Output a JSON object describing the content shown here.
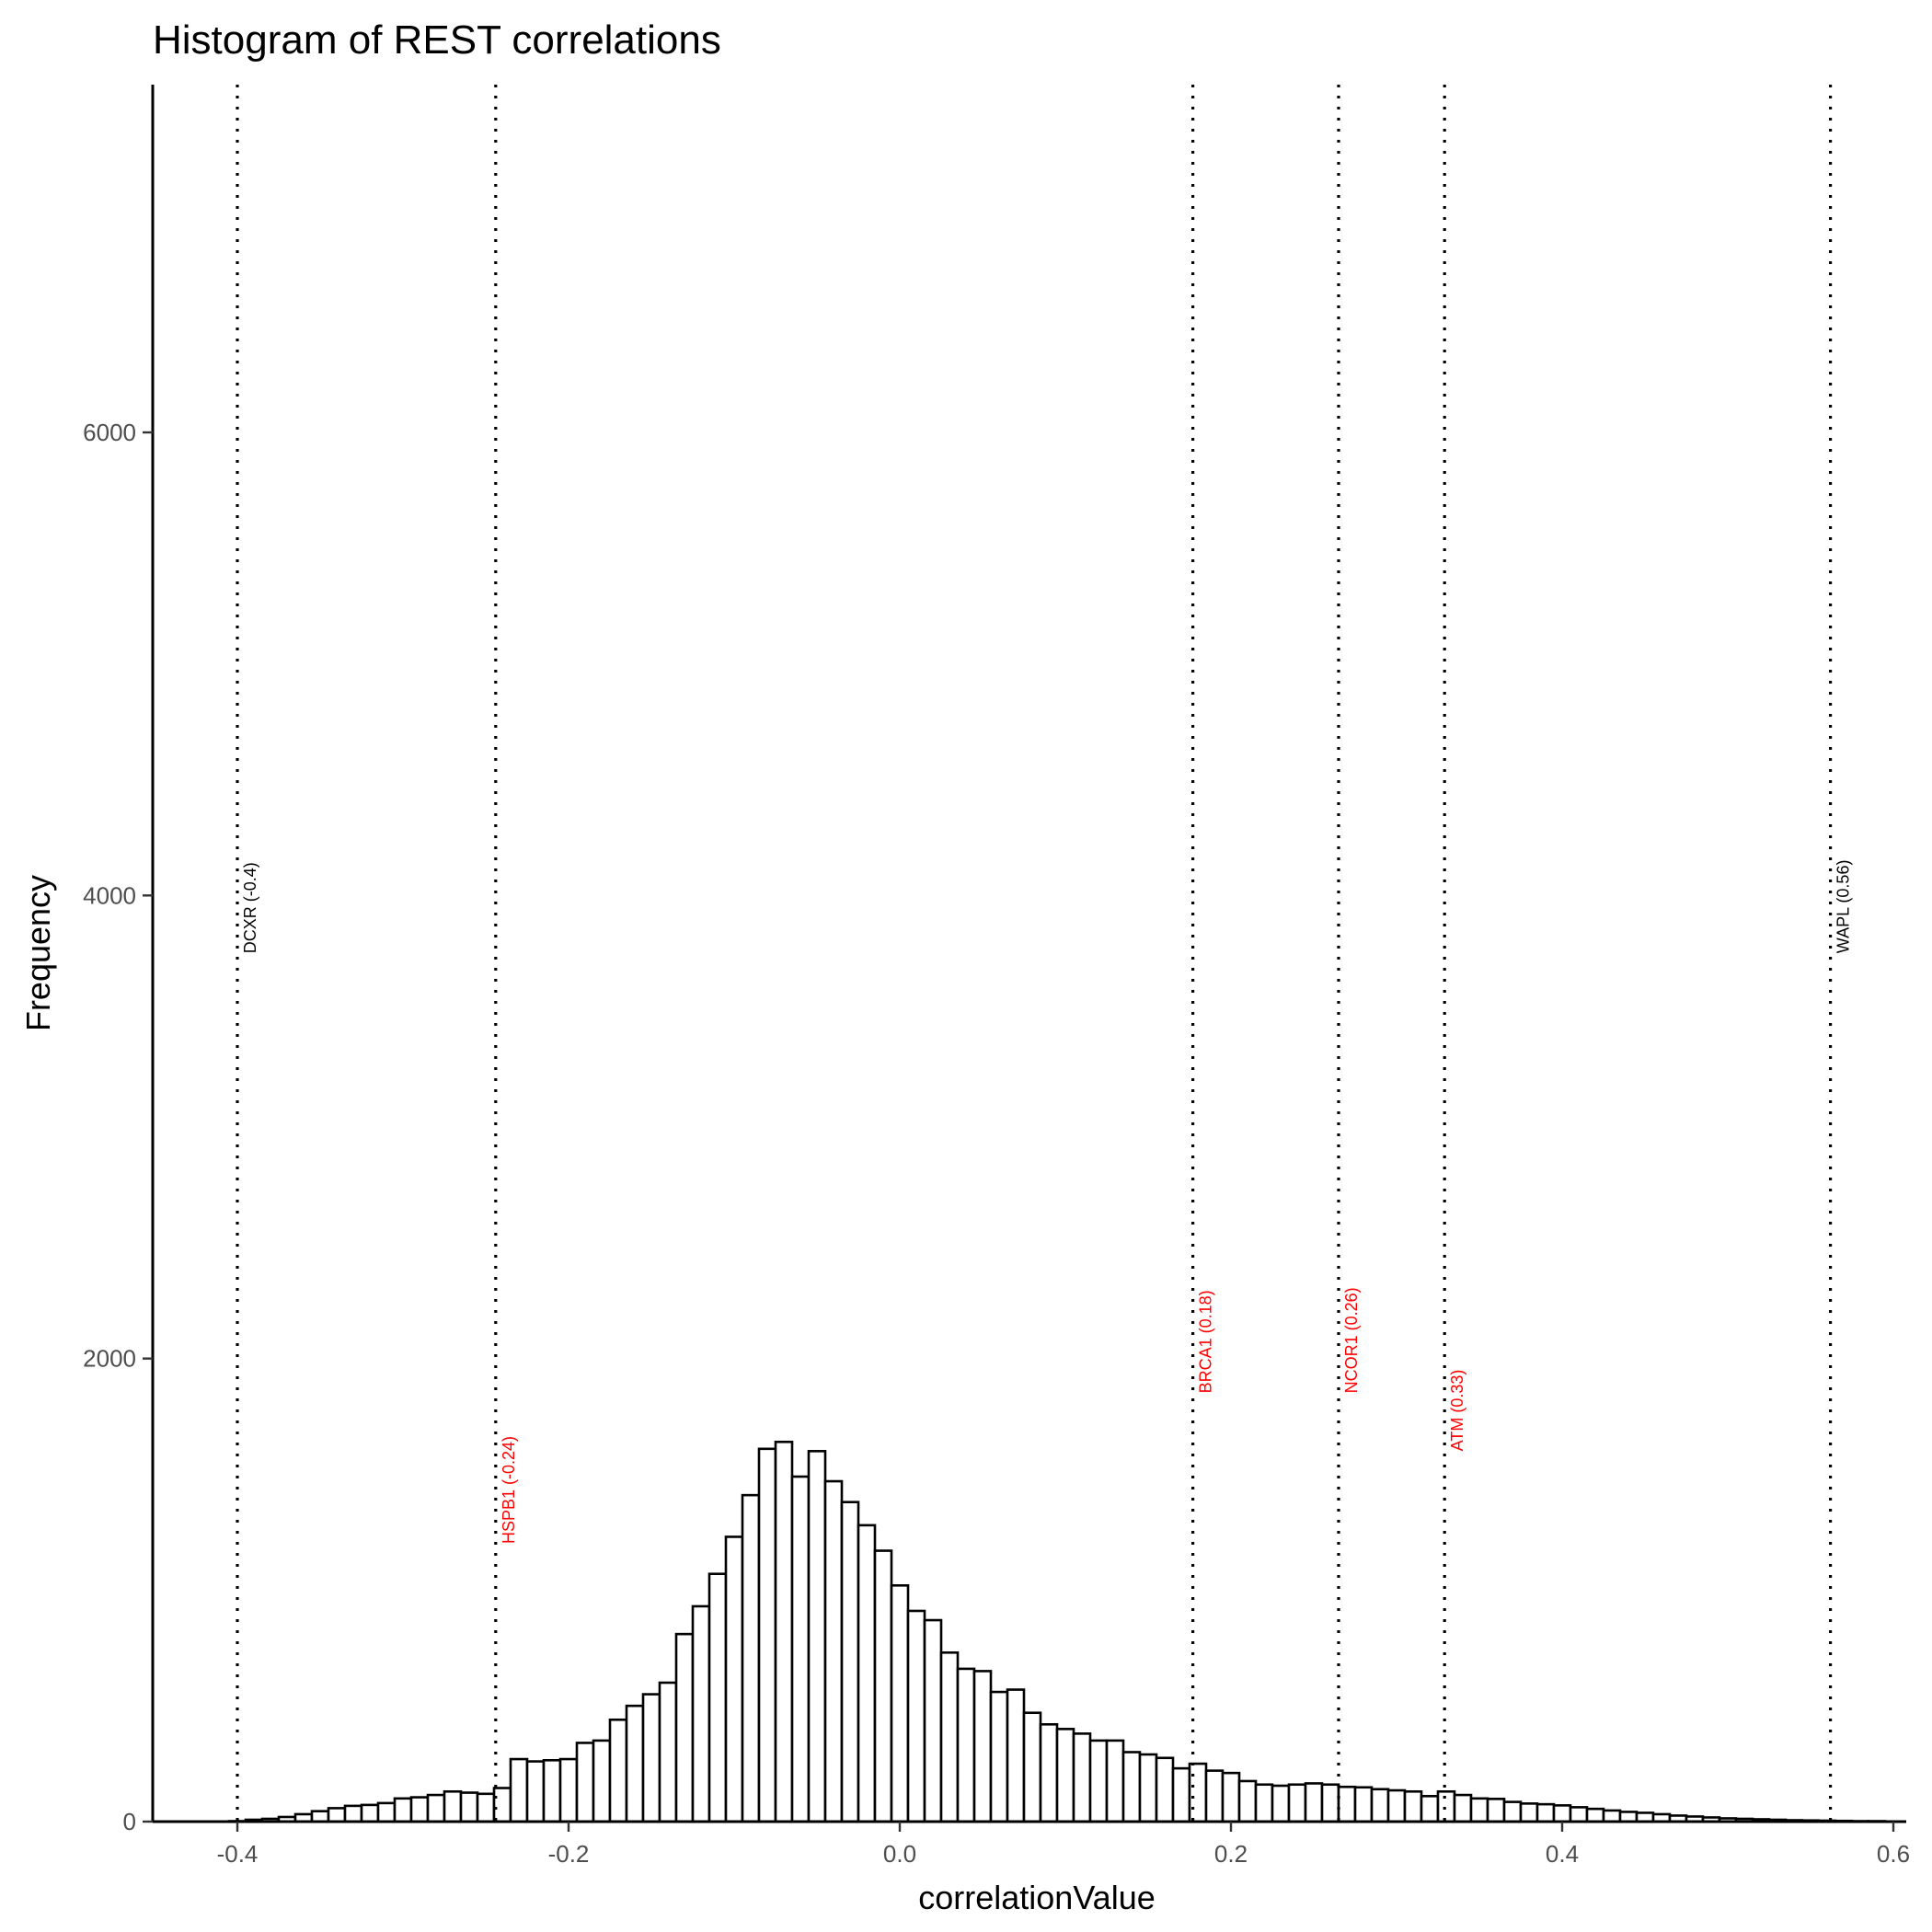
{
  "chart_data": {
    "type": "bar",
    "title": "Histogram of REST correlations",
    "xlabel": "correlationValue",
    "ylabel": "Frequency",
    "xlim": [
      -0.45,
      0.61
    ],
    "ylim": [
      0,
      7500
    ],
    "x_ticks": [
      -0.4,
      -0.2,
      0.0,
      0.2,
      0.4,
      0.6
    ],
    "x_tick_labels": [
      "-0.4",
      "-0.2",
      "0.0",
      "0.2",
      "0.4",
      "0.6"
    ],
    "y_ticks": [
      0,
      2000,
      4000,
      6000
    ],
    "y_tick_labels": [
      "0",
      "2000",
      "4000",
      "6000"
    ],
    "grid": false,
    "bin_width": 0.01,
    "bin_start": -0.405,
    "values": [
      2,
      8,
      12,
      20,
      32,
      45,
      58,
      68,
      72,
      80,
      100,
      105,
      115,
      130,
      125,
      120,
      145,
      270,
      260,
      265,
      270,
      340,
      350,
      440,
      500,
      550,
      600,
      810,
      930,
      1070,
      1230,
      1410,
      1610,
      1640,
      1490,
      1600,
      1470,
      1380,
      1280,
      1170,
      1020,
      910,
      870,
      730,
      660,
      650,
      560,
      570,
      470,
      420,
      400,
      380,
      350,
      350,
      300,
      290,
      275,
      230,
      250,
      220,
      210,
      175,
      160,
      155,
      160,
      165,
      160,
      150,
      148,
      140,
      135,
      130,
      110,
      130,
      115,
      100,
      98,
      85,
      78,
      75,
      70,
      62,
      55,
      48,
      42,
      38,
      32,
      26,
      22,
      18,
      14,
      12,
      10,
      8,
      6,
      5,
      4,
      3,
      2,
      2
    ],
    "reference_lines": [
      {
        "x": -0.4,
        "label": "DCXR (-0.4)",
        "color": "#000000",
        "label_y": 3750
      },
      {
        "x": -0.244,
        "label": "HSPB1 (-0.24)",
        "color": "#ff0000",
        "label_y": 1200
      },
      {
        "x": 0.177,
        "label": "BRCA1 (0.18)",
        "color": "#ff0000",
        "label_y": 1850
      },
      {
        "x": 0.265,
        "label": "NCOR1 (0.26)",
        "color": "#ff0000",
        "label_y": 1850
      },
      {
        "x": 0.329,
        "label": "ATM (0.33)",
        "color": "#ff0000",
        "label_y": 1600
      },
      {
        "x": 0.562,
        "label": "WAPL (0.56)",
        "color": "#000000",
        "label_y": 3750
      }
    ]
  }
}
